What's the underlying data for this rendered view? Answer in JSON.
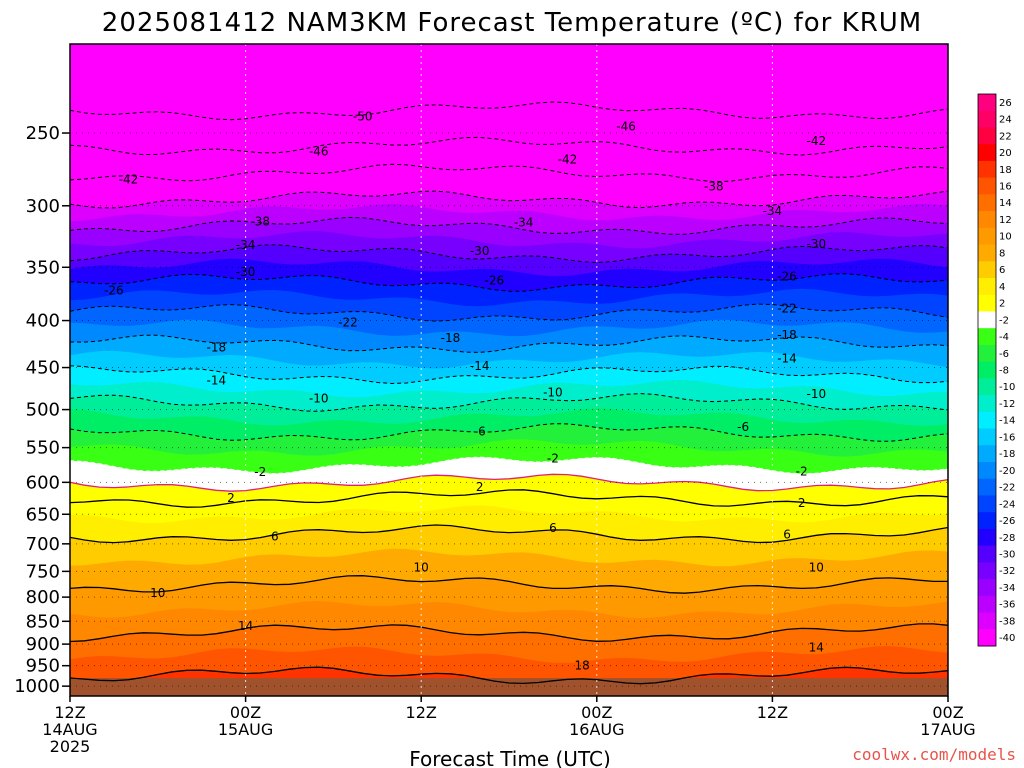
{
  "chart_data": {
    "type": "heatmap",
    "title": "2025081412 NAM3KM Forecast Temperature (ºC) for KRUM",
    "xlabel": "Forecast Time (UTC)",
    "credit": "coolwx.com/models",
    "y_axis": {
      "scale": "log",
      "reversed": true,
      "range": [
        1025,
        200
      ],
      "ticks": [
        250,
        300,
        350,
        400,
        450,
        500,
        550,
        600,
        650,
        700,
        750,
        800,
        850,
        900,
        950,
        1000
      ]
    },
    "x_axis": {
      "range_hours": [
        0,
        60
      ],
      "ticks": [
        {
          "hour": 0,
          "lines": [
            "12Z",
            "14AUG",
            "2025"
          ]
        },
        {
          "hour": 12,
          "lines": [
            "00Z",
            "15AUG"
          ]
        },
        {
          "hour": 24,
          "lines": [
            "12Z"
          ]
        },
        {
          "hour": 36,
          "lines": [
            "00Z",
            "16AUG"
          ]
        },
        {
          "hour": 48,
          "lines": [
            "12Z"
          ]
        },
        {
          "hour": 60,
          "lines": [
            "00Z",
            "17AUG"
          ]
        }
      ]
    },
    "grid": true,
    "ground_level_hPa": 980,
    "temperature_profile": [
      {
        "pressure": 200,
        "temp": -56
      },
      {
        "pressure": 250,
        "temp": -48
      },
      {
        "pressure": 300,
        "temp": -37
      },
      {
        "pressure": 350,
        "temp": -28
      },
      {
        "pressure": 400,
        "temp": -21
      },
      {
        "pressure": 450,
        "temp": -15
      },
      {
        "pressure": 500,
        "temp": -9
      },
      {
        "pressure": 550,
        "temp": -4
      },
      {
        "pressure": 600,
        "temp": 0
      },
      {
        "pressure": 650,
        "temp": 4
      },
      {
        "pressure": 700,
        "temp": 7
      },
      {
        "pressure": 750,
        "temp": 9
      },
      {
        "pressure": 800,
        "temp": 11
      },
      {
        "pressure": 850,
        "temp": 13
      },
      {
        "pressure": 900,
        "temp": 15
      },
      {
        "pressure": 950,
        "temp": 17
      },
      {
        "pressure": 1000,
        "temp": 19
      }
    ],
    "contour_levels": [
      -50,
      -46,
      -42,
      -38,
      -34,
      -30,
      -26,
      -22,
      -18,
      -14,
      -10,
      -6,
      -2,
      2,
      6,
      10,
      14,
      18
    ],
    "contour_labels": [
      {
        "text": "-50",
        "hour": 20,
        "pressure": 240
      },
      {
        "text": "-46",
        "hour": 17,
        "pressure": 262
      },
      {
        "text": "-46",
        "hour": 38,
        "pressure": 246
      },
      {
        "text": "-42",
        "hour": 4,
        "pressure": 281
      },
      {
        "text": "-42",
        "hour": 34,
        "pressure": 267
      },
      {
        "text": "-42",
        "hour": 51,
        "pressure": 255
      },
      {
        "text": "-38",
        "hour": 13,
        "pressure": 312
      },
      {
        "text": "-38",
        "hour": 44,
        "pressure": 286
      },
      {
        "text": "-34",
        "hour": 12,
        "pressure": 331
      },
      {
        "text": "-34",
        "hour": 31,
        "pressure": 313
      },
      {
        "text": "-34",
        "hour": 48,
        "pressure": 304
      },
      {
        "text": "-30",
        "hour": 12,
        "pressure": 354
      },
      {
        "text": "-30",
        "hour": 28,
        "pressure": 336
      },
      {
        "text": "-30",
        "hour": 51,
        "pressure": 330
      },
      {
        "text": "-26",
        "hour": 3,
        "pressure": 371
      },
      {
        "text": "-26",
        "hour": 29,
        "pressure": 362
      },
      {
        "text": "-26",
        "hour": 49,
        "pressure": 358
      },
      {
        "text": "-22",
        "hour": 19,
        "pressure": 402
      },
      {
        "text": "-22",
        "hour": 49,
        "pressure": 388
      },
      {
        "text": "-18",
        "hour": 10,
        "pressure": 428
      },
      {
        "text": "-18",
        "hour": 26,
        "pressure": 418
      },
      {
        "text": "-18",
        "hour": 49,
        "pressure": 415
      },
      {
        "text": "-14",
        "hour": 10,
        "pressure": 465
      },
      {
        "text": "-14",
        "hour": 28,
        "pressure": 448
      },
      {
        "text": "-14",
        "hour": 49,
        "pressure": 440
      },
      {
        "text": "-10",
        "hour": 17,
        "pressure": 486
      },
      {
        "text": "-10",
        "hour": 33,
        "pressure": 479
      },
      {
        "text": "-10",
        "hour": 51,
        "pressure": 481
      },
      {
        "text": "-6",
        "hour": 28,
        "pressure": 528
      },
      {
        "text": "-6",
        "hour": 46,
        "pressure": 522
      },
      {
        "text": "-2",
        "hour": 33,
        "pressure": 565
      },
      {
        "text": "-2",
        "hour": 13,
        "pressure": 585
      },
      {
        "text": "-2",
        "hour": 50,
        "pressure": 584
      },
      {
        "text": "2",
        "hour": 11,
        "pressure": 624
      },
      {
        "text": "2",
        "hour": 28,
        "pressure": 607
      },
      {
        "text": "2",
        "hour": 50,
        "pressure": 632
      },
      {
        "text": "6",
        "hour": 14,
        "pressure": 687
      },
      {
        "text": "6",
        "hour": 33,
        "pressure": 673
      },
      {
        "text": "6",
        "hour": 49,
        "pressure": 684
      },
      {
        "text": "10",
        "hour": 6,
        "pressure": 792
      },
      {
        "text": "10",
        "hour": 24,
        "pressure": 743
      },
      {
        "text": "10",
        "hour": 51,
        "pressure": 743
      },
      {
        "text": "14",
        "hour": 12,
        "pressure": 860
      },
      {
        "text": "14",
        "hour": 51,
        "pressure": 908
      },
      {
        "text": "18",
        "hour": 35,
        "pressure": 950
      }
    ],
    "colorbar": {
      "labels": [
        "26",
        "24",
        "22",
        "20",
        "18",
        "16",
        "14",
        "12",
        "10",
        "8",
        "6",
        "4",
        "2",
        "-2",
        "-4",
        "-6",
        "-8",
        "-10",
        "-12",
        "-14",
        "-16",
        "-18",
        "-20",
        "-22",
        "-24",
        "-26",
        "-28",
        "-30",
        "-32",
        "-34",
        "-36",
        "-38",
        "-40"
      ],
      "colors": [
        "#ff0080",
        "#ff0066",
        "#ff0040",
        "#ff0000",
        "#ff3300",
        "#ff5500",
        "#ff6f00",
        "#ff8800",
        "#ff9900",
        "#ffaa00",
        "#ffcc00",
        "#ffee00",
        "#ffff00",
        "#ffffff",
        "#39ff14",
        "#22f03a",
        "#00ee66",
        "#00ee99",
        "#00eecc",
        "#00eeff",
        "#00ccff",
        "#00aaff",
        "#0088ff",
        "#0066ff",
        "#0044ff",
        "#0022ff",
        "#2200ff",
        "#5500ff",
        "#7700ff",
        "#9900ff",
        "#bb00ff",
        "#dd00ff",
        "#ff00ff"
      ]
    }
  }
}
